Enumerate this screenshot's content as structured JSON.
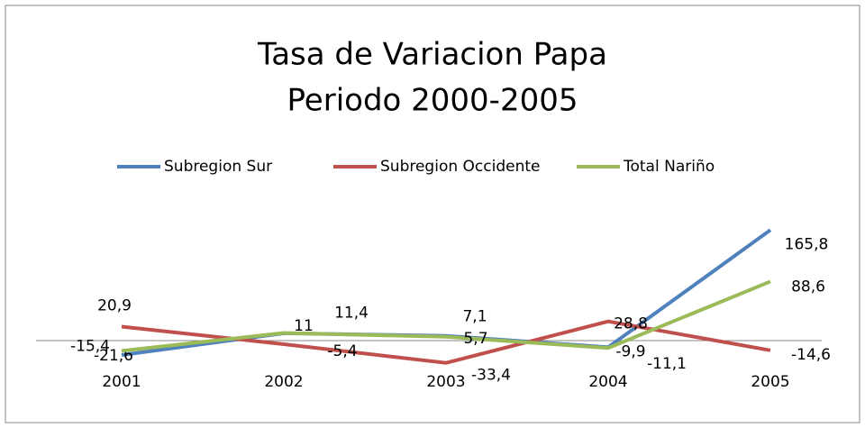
{
  "chart_data": {
    "type": "line",
    "title": "Tasa de Variacion Papa",
    "subtitle": "Periodo 2000-2005",
    "categories": [
      "2001",
      "2002",
      "2003",
      "2004",
      "2005"
    ],
    "series": [
      {
        "name": "Subregion Sur",
        "color": "#4f81bd",
        "values": [
          -21.6,
          11,
          7.1,
          -9.9,
          165.8
        ],
        "value_labels": [
          "-21,6",
          "11",
          "7,1",
          "-9,9",
          "165,8"
        ]
      },
      {
        "name": "Subregion Occidente",
        "color": "#c0504d",
        "values": [
          20.9,
          -5.4,
          -33.4,
          28.8,
          -14.6
        ],
        "value_labels": [
          "20,9",
          "-5,4",
          "-33,4",
          "28,8",
          "-14,6"
        ]
      },
      {
        "name": "Total Nariño",
        "color": "#9bbb59",
        "values": [
          -15.4,
          11.4,
          5.7,
          -11.1,
          88.6
        ],
        "value_labels": [
          "-15,4",
          "11,4",
          "5,7",
          "-11,1",
          "88,6"
        ]
      }
    ],
    "ylim": [
      -50,
      200
    ],
    "legend": "top"
  }
}
